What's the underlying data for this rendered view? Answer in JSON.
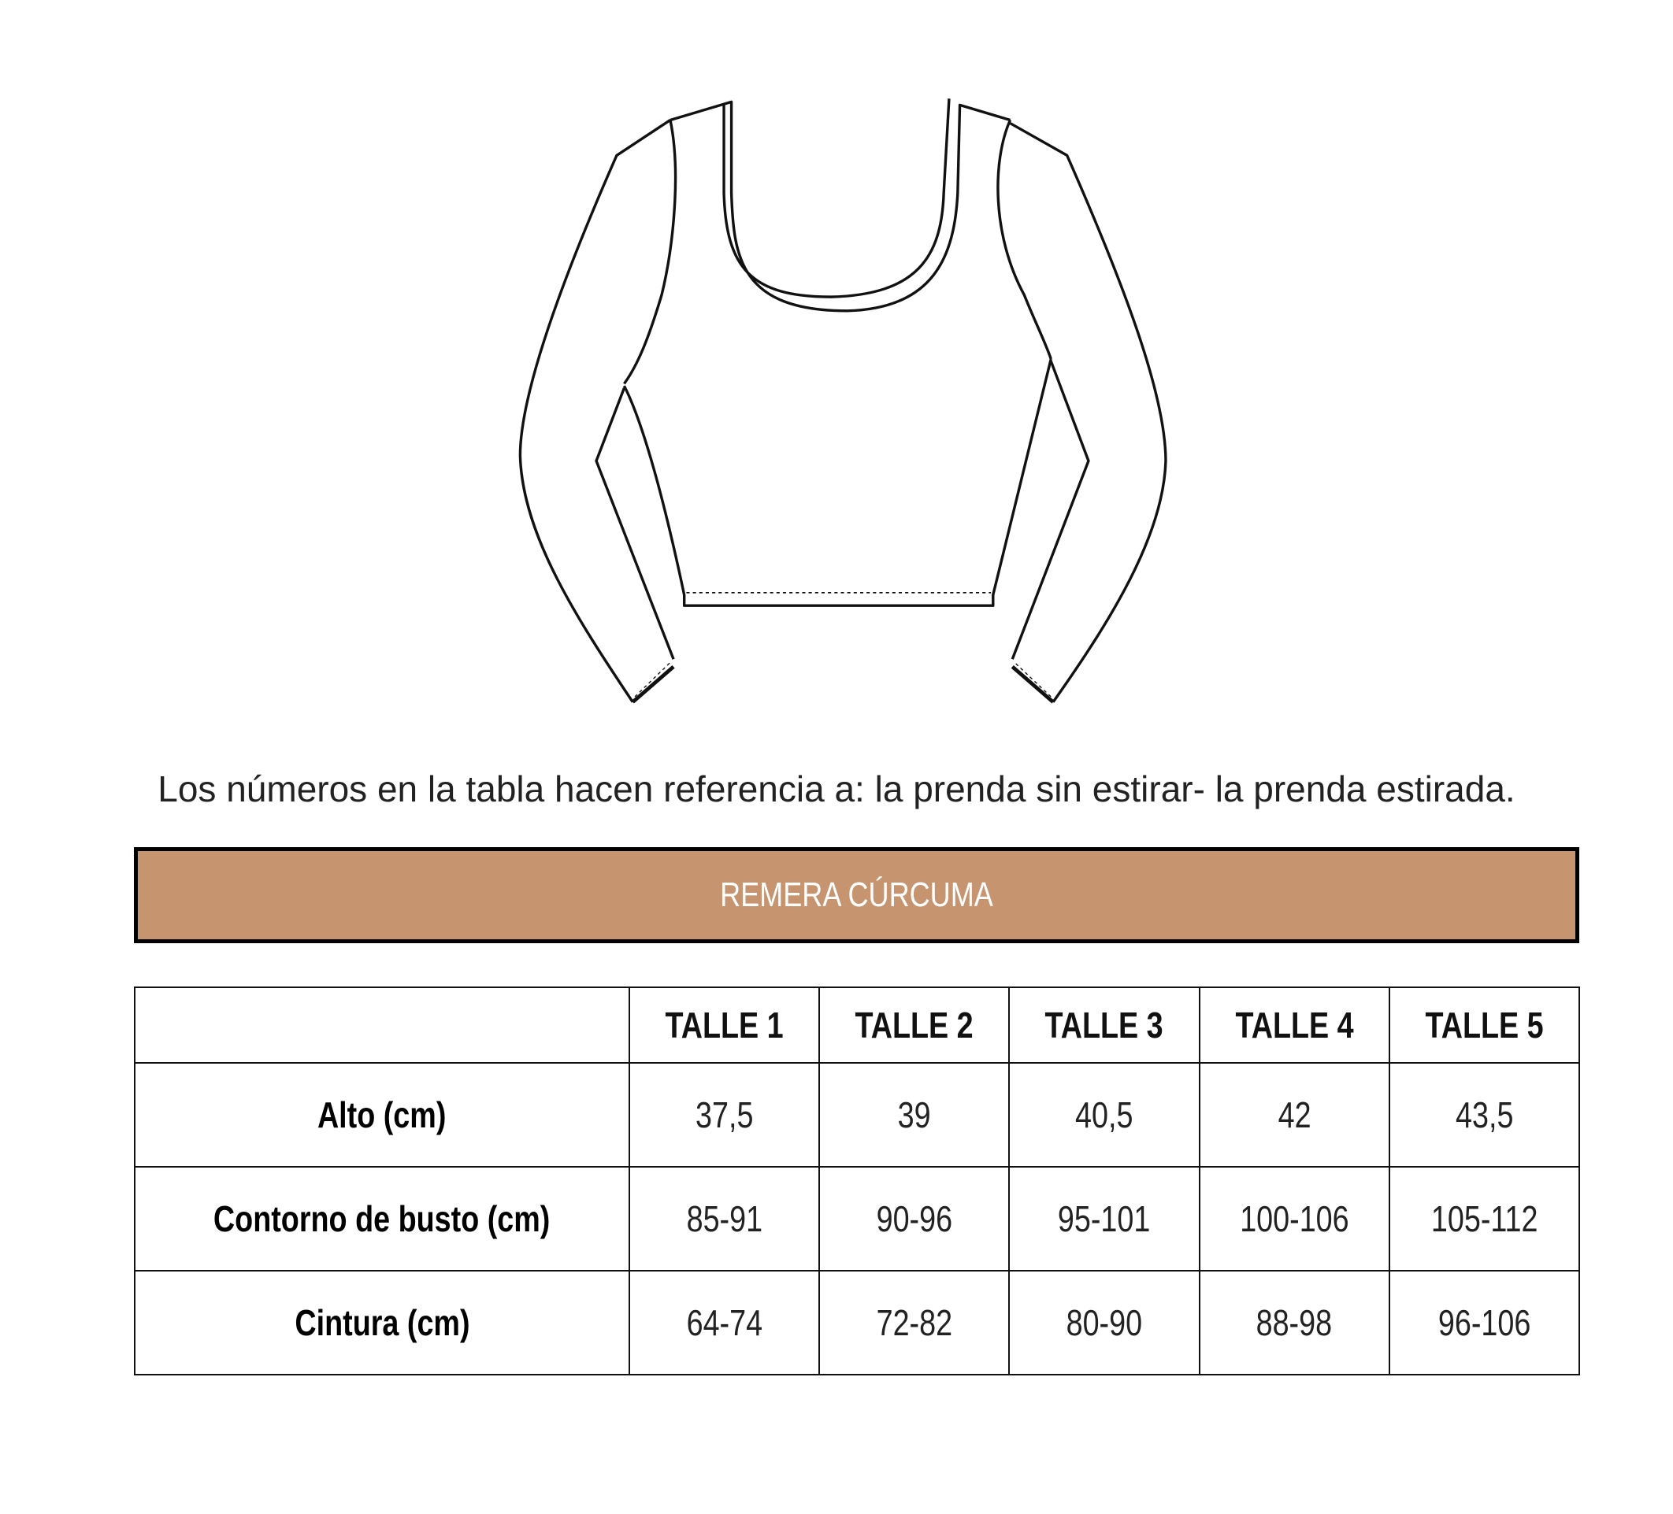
{
  "caption": "Los números en la tabla hacen referencia a: la prenda sin estirar- la prenda estirada.",
  "banner": {
    "title": "REMERA CÚRCUMA",
    "color": "#c69570"
  },
  "table": {
    "headers": [
      "",
      "TALLE 1",
      "TALLE 2",
      "TALLE 3",
      "TALLE 4",
      "TALLE 5"
    ],
    "rows": [
      {
        "label": "Alto (cm)",
        "values": [
          "37,5",
          "39",
          "40,5",
          "42",
          "43,5"
        ]
      },
      {
        "label": "Contorno de busto (cm)",
        "values": [
          "85-91",
          "90-96",
          "95-101",
          "100-106",
          "105-112"
        ]
      },
      {
        "label": "Cintura (cm)",
        "values": [
          "64-74",
          "72-82",
          "80-90",
          "88-98",
          "96-106"
        ]
      }
    ]
  },
  "illustration": {
    "icon": "long-sleeve-crop-top-drawing"
  }
}
